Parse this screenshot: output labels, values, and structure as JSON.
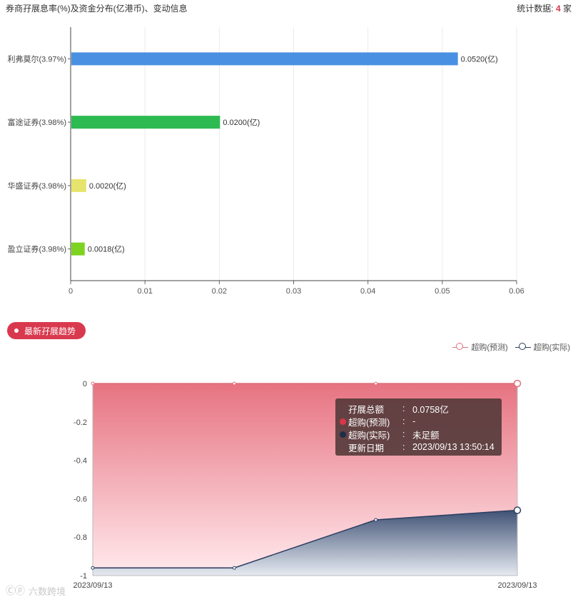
{
  "header": {
    "title": "券商孖展息率(%)及资金分布(亿港币)、变动信息",
    "stat_label": "统计数据: ",
    "stat_count": "4",
    "stat_unit": "家"
  },
  "chart_data": [
    {
      "type": "bar",
      "orientation": "horizontal",
      "categories": [
        "利弗莫尔(3.97%)",
        "富途证券(3.98%)",
        "华盛证券(3.98%)",
        "盈立证券(3.98%)"
      ],
      "values": [
        0.052,
        0.02,
        0.002,
        0.0018
      ],
      "data_labels": [
        "0.0520(亿)",
        "0.0200(亿)",
        "0.0020(亿)",
        "0.0018(亿)"
      ],
      "colors": [
        "#4a90e2",
        "#2dba50",
        "#e6e46c",
        "#7ed321"
      ],
      "xlim": [
        0,
        0.06
      ],
      "xticks": [
        "0",
        "0.01",
        "0.02",
        "0.03",
        "0.04",
        "0.05",
        "0.06"
      ],
      "grid": true
    },
    {
      "type": "area",
      "x": [
        "2023/09/13",
        "2023/09/13",
        "2023/09/13",
        "2023/09/13"
      ],
      "xtick_labels": [
        "2023/09/13",
        "2023/09/13"
      ],
      "series": [
        {
          "name": "超购(预测)",
          "values": [
            0,
            0,
            0,
            0
          ],
          "color": "#e0707c"
        },
        {
          "name": "超购(实际)",
          "values": [
            -0.96,
            -0.96,
            -0.71,
            -0.66
          ],
          "color": "#2a3d60"
        }
      ],
      "ylim": [
        -1,
        0
      ],
      "yticks": [
        "0",
        "-0.2",
        "-0.4",
        "-0.6",
        "-0.8",
        "-1"
      ],
      "legend_position": "top-right"
    }
  ],
  "trend_button": {
    "label": "最新孖展趋势"
  },
  "tooltip": {
    "rows": [
      {
        "label": "孖展总额",
        "colon": ":",
        "value": "0.0758亿",
        "dot": ""
      },
      {
        "label": "超购(预测)",
        "colon": ":",
        "value": "-",
        "dot": "#d9364b"
      },
      {
        "label": "超购(实际)",
        "colon": ":",
        "value": "未足额",
        "dot": "#1e2d4a"
      },
      {
        "label": "更新日期",
        "colon": ":",
        "value": "2023/09/13 13:50:14",
        "dot": ""
      }
    ]
  },
  "watermark": {
    "logo": "Ⓒⓟ",
    "text": "六数跨境"
  }
}
